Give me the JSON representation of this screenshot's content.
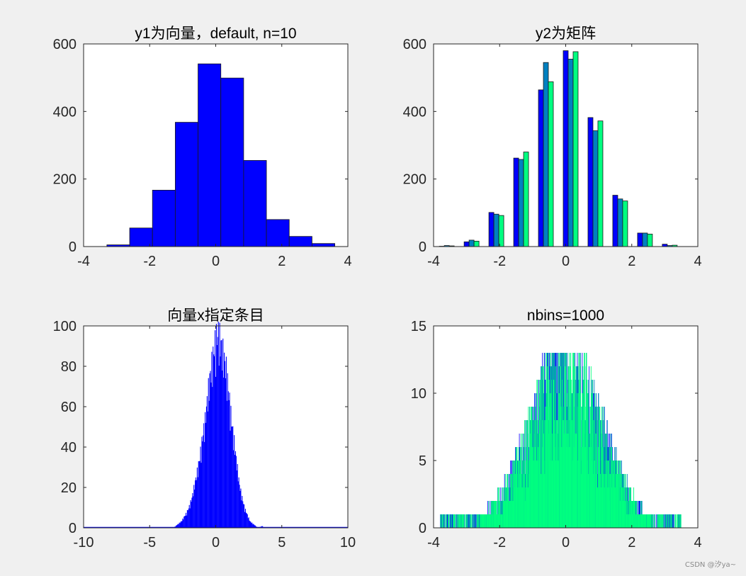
{
  "watermark": "CSDN @汐ya~",
  "chart_data": [
    {
      "type": "bar",
      "title": "y1为向量，default, n=10",
      "xlim": [
        -4,
        4
      ],
      "ylim": [
        0,
        600
      ],
      "xticks": [
        "-4",
        "-2",
        "0",
        "2",
        "4"
      ],
      "yticks": [
        "0",
        "200",
        "400",
        "600"
      ],
      "bin_width": 0.69,
      "bin_centers": [
        -2.95,
        -2.26,
        -1.57,
        -0.88,
        -0.19,
        0.5,
        1.19,
        1.88,
        2.57,
        3.26
      ],
      "series": [
        {
          "values": [
            5,
            55,
            167,
            368,
            541,
            499,
            255,
            80,
            30,
            9
          ],
          "color": "#0000ff"
        }
      ]
    },
    {
      "type": "bar",
      "title": "y2为矩阵",
      "xlim": [
        -4,
        4
      ],
      "ylim": [
        0,
        600
      ],
      "xticks": [
        "-4",
        "-2",
        "0",
        "2",
        "4"
      ],
      "yticks": [
        "0",
        "200",
        "400",
        "600"
      ],
      "bin_centers": [
        -3.6,
        -2.85,
        -2.1,
        -1.35,
        -0.6,
        0.15,
        0.9,
        1.65,
        2.4,
        3.15
      ],
      "series": [
        {
          "values": [
            1,
            14,
            101,
            262,
            464,
            580,
            382,
            152,
            40,
            7
          ],
          "color": "#0000ff"
        },
        {
          "values": [
            3,
            19,
            96,
            258,
            545,
            555,
            343,
            141,
            40,
            3
          ],
          "color": "#0080c0"
        },
        {
          "values": [
            2,
            16,
            92,
            280,
            488,
            577,
            372,
            135,
            37,
            4
          ],
          "color": "#00ff80"
        }
      ]
    },
    {
      "type": "area",
      "title": "向量x指定条目",
      "xlim": [
        -10,
        10
      ],
      "ylim": [
        0,
        100
      ],
      "xticks": [
        "-10",
        "-5",
        "0",
        "5",
        "10"
      ],
      "yticks": [
        "0",
        "20",
        "40",
        "60",
        "80",
        "100"
      ],
      "series": [
        {
          "color": "#0000ff",
          "x": [
            -3.2,
            -3.0,
            -2.8,
            -2.6,
            -2.4,
            -2.2,
            -2.0,
            -1.8,
            -1.6,
            -1.4,
            -1.2,
            -1.0,
            -0.8,
            -0.6,
            -0.4,
            -0.2,
            0.0,
            0.2,
            0.4,
            0.6,
            0.8,
            1.0,
            1.2,
            1.4,
            1.6,
            1.8,
            2.0,
            2.2,
            2.4,
            2.6,
            2.8,
            3.0,
            3.2,
            3.6
          ],
          "y": [
            0,
            1,
            2,
            3,
            5,
            7,
            10,
            14,
            20,
            26,
            33,
            42,
            50,
            62,
            72,
            80,
            88,
            91,
            86,
            80,
            74,
            62,
            50,
            40,
            30,
            20,
            14,
            9,
            6,
            3,
            2,
            1,
            0,
            1
          ]
        }
      ]
    },
    {
      "type": "bar",
      "title": "nbins=1000",
      "xlim": [
        -4,
        4
      ],
      "ylim": [
        0,
        15
      ],
      "xticks": [
        "-4",
        "-2",
        "0",
        "2",
        "4"
      ],
      "yticks": [
        "0",
        "5",
        "10",
        "15"
      ],
      "range": [
        -3.8,
        3.5
      ],
      "peak": 13,
      "series": [
        {
          "color": "#0000ff"
        },
        {
          "color": "#0080c0"
        },
        {
          "color": "#00ff80"
        }
      ]
    }
  ]
}
